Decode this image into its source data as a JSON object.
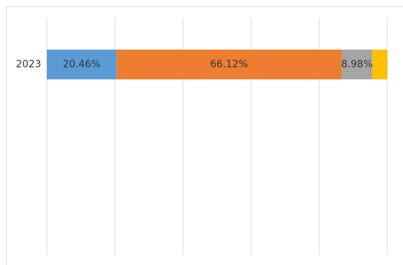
{
  "chart_data": {
    "type": "stacked-barh",
    "categories": [
      "2023"
    ],
    "series": [
      {
        "color": "#5b9bd5",
        "values": [
          20.46
        ],
        "value_labels": [
          "20.46%"
        ]
      },
      {
        "color": "#ed7d31",
        "values": [
          66.12
        ],
        "value_labels": [
          "66.12%"
        ]
      },
      {
        "color": "#a5a5a5",
        "values": [
          8.98
        ],
        "value_labels": [
          "8.98%"
        ]
      },
      {
        "color": "#ffc000",
        "values": [
          4.44
        ]
      }
    ],
    "xlim": [
      0,
      100
    ],
    "xticks": [
      0,
      20,
      40,
      60,
      80,
      100
    ],
    "grid": true
  }
}
